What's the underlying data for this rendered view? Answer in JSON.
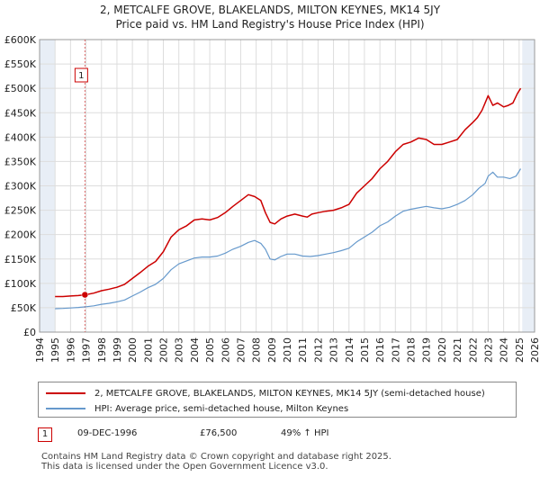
{
  "title_line1": "2, METCALFE GROVE, BLAKELANDS, MILTON KEYNES, MK14 5JY",
  "title_line2": "Price paid vs. HM Land Registry's House Price Index (HPI)",
  "colors": {
    "property": "#cc0000",
    "hpi": "#6699cc",
    "grid": "#dddddd",
    "shade": "#e8eef6"
  },
  "chart_data": {
    "type": "line",
    "xlim": [
      1994,
      2026
    ],
    "ylim": [
      0,
      600000
    ],
    "xticks": [
      1994,
      1995,
      1996,
      1997,
      1998,
      1999,
      2000,
      2001,
      2002,
      2003,
      2004,
      2005,
      2006,
      2007,
      2008,
      2009,
      2010,
      2011,
      2012,
      2013,
      2014,
      2015,
      2016,
      2017,
      2018,
      2019,
      2020,
      2021,
      2022,
      2023,
      2024,
      2025,
      2026
    ],
    "yticks": [
      {
        "v": 0,
        "label": "£0"
      },
      {
        "v": 50000,
        "label": "£50K"
      },
      {
        "v": 100000,
        "label": "£100K"
      },
      {
        "v": 150000,
        "label": "£150K"
      },
      {
        "v": 200000,
        "label": "£200K"
      },
      {
        "v": 250000,
        "label": "£250K"
      },
      {
        "v": 300000,
        "label": "£300K"
      },
      {
        "v": 350000,
        "label": "£350K"
      },
      {
        "v": 400000,
        "label": "£400K"
      },
      {
        "v": 450000,
        "label": "£450K"
      },
      {
        "v": 500000,
        "label": "£500K"
      },
      {
        "v": 550000,
        "label": "£550K"
      },
      {
        "v": 600000,
        "label": "£600K"
      }
    ],
    "shaded_regions": [
      [
        1994,
        1995
      ],
      [
        2025.2,
        2026
      ]
    ],
    "series": [
      {
        "name": "2, METCALFE GROVE, BLAKELANDS, MILTON KEYNES, MK14 5JY (semi-detached house)",
        "color": "#cc0000",
        "x": [
          1995.0,
          1995.5,
          1996.0,
          1996.5,
          1996.93,
          1997.5,
          1998.0,
          1998.5,
          1999.0,
          1999.5,
          2000.0,
          2000.5,
          2001.0,
          2001.5,
          2002.0,
          2002.5,
          2003.0,
          2003.5,
          2004.0,
          2004.5,
          2005.0,
          2005.5,
          2006.0,
          2006.5,
          2007.0,
          2007.5,
          2007.9,
          2008.3,
          2008.6,
          2008.9,
          2009.2,
          2009.6,
          2010.0,
          2010.5,
          2011.0,
          2011.3,
          2011.6,
          2012.0,
          2012.5,
          2013.0,
          2013.5,
          2014.0,
          2014.5,
          2015.0,
          2015.5,
          2016.0,
          2016.5,
          2017.0,
          2017.5,
          2018.0,
          2018.5,
          2019.0,
          2019.5,
          2020.0,
          2020.5,
          2021.0,
          2021.5,
          2022.0,
          2022.3,
          2022.6,
          2022.8,
          2023.0,
          2023.3,
          2023.6,
          2024.0,
          2024.3,
          2024.6,
          2024.9,
          2025.1
        ],
        "y": [
          73000,
          73000,
          74000,
          75000,
          76500,
          80000,
          85000,
          88000,
          92000,
          98000,
          110000,
          122000,
          135000,
          145000,
          165000,
          195000,
          210000,
          218000,
          230000,
          232000,
          230000,
          235000,
          245000,
          258000,
          270000,
          282000,
          278000,
          270000,
          245000,
          225000,
          222000,
          232000,
          238000,
          242000,
          238000,
          236000,
          242000,
          245000,
          248000,
          250000,
          255000,
          262000,
          285000,
          300000,
          315000,
          335000,
          350000,
          370000,
          385000,
          390000,
          398000,
          395000,
          385000,
          385000,
          390000,
          395000,
          415000,
          430000,
          440000,
          455000,
          470000,
          485000,
          465000,
          470000,
          462000,
          465000,
          470000,
          490000,
          500000
        ]
      },
      {
        "name": "HPI: Average price, semi-detached house, Milton Keynes",
        "color": "#6699cc",
        "x": [
          1995.0,
          1995.5,
          1996.0,
          1996.5,
          1997.0,
          1997.5,
          1998.0,
          1998.5,
          1999.0,
          1999.5,
          2000.0,
          2000.5,
          2001.0,
          2001.5,
          2002.0,
          2002.5,
          2003.0,
          2003.5,
          2004.0,
          2004.5,
          2005.0,
          2005.5,
          2006.0,
          2006.5,
          2007.0,
          2007.5,
          2007.9,
          2008.3,
          2008.6,
          2008.9,
          2009.2,
          2009.6,
          2010.0,
          2010.5,
          2011.0,
          2011.5,
          2012.0,
          2012.5,
          2013.0,
          2013.5,
          2014.0,
          2014.5,
          2015.0,
          2015.5,
          2016.0,
          2016.5,
          2017.0,
          2017.5,
          2018.0,
          2018.5,
          2019.0,
          2019.5,
          2020.0,
          2020.5,
          2021.0,
          2021.5,
          2022.0,
          2022.4,
          2022.8,
          2023.0,
          2023.3,
          2023.6,
          2024.0,
          2024.4,
          2024.8,
          2025.1
        ],
        "y": [
          48000,
          48500,
          49500,
          50500,
          52000,
          54000,
          57000,
          59000,
          62000,
          66000,
          74000,
          82000,
          91000,
          98000,
          110000,
          128000,
          140000,
          146000,
          152000,
          154000,
          154000,
          156000,
          162000,
          170000,
          176000,
          184000,
          188000,
          182000,
          170000,
          150000,
          148000,
          155000,
          160000,
          160000,
          156000,
          155000,
          157000,
          160000,
          163000,
          167000,
          172000,
          185000,
          195000,
          205000,
          218000,
          226000,
          238000,
          248000,
          252000,
          255000,
          258000,
          255000,
          253000,
          256000,
          262000,
          270000,
          282000,
          295000,
          305000,
          320000,
          328000,
          318000,
          318000,
          315000,
          320000,
          335000
        ]
      }
    ],
    "sale": {
      "label": "1",
      "x": 1996.93,
      "y": 76500
    }
  },
  "legend": {
    "property_label": "2, METCALFE GROVE, BLAKELANDS, MILTON KEYNES, MK14 5JY (semi-detached house)",
    "hpi_label": "HPI: Average price, semi-detached house, Milton Keynes"
  },
  "annotation": {
    "number": "1",
    "date": "09-DEC-1996",
    "price": "£76,500",
    "hpi_change": "49% ↑ HPI"
  },
  "footer": {
    "line1": "Contains HM Land Registry data © Crown copyright and database right 2025.",
    "line2": "This data is licensed under the Open Government Licence v3.0."
  }
}
